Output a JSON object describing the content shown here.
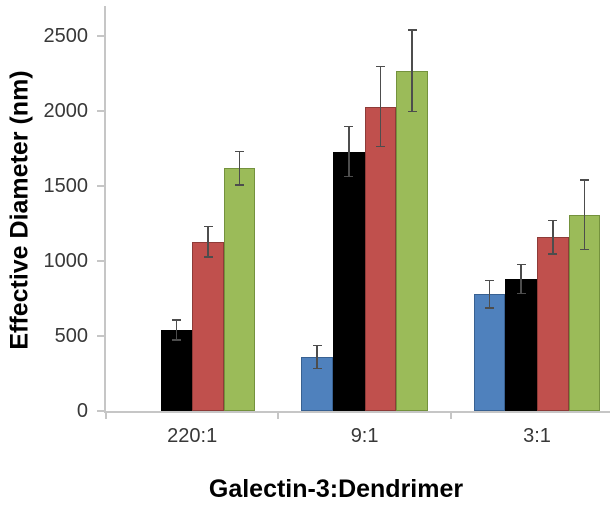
{
  "chart_data": {
    "type": "bar",
    "title": "",
    "xlabel": "Galectin-3:Dendrimer",
    "ylabel": "Effective Diameter (nm)",
    "categories": [
      "220:1",
      "9:1",
      "3:1"
    ],
    "series": [
      {
        "name": "blue",
        "color": "#4F81BD",
        "border_color": "#386192",
        "values": [
          null,
          360,
          780
        ],
        "errors": [
          null,
          75,
          90
        ]
      },
      {
        "name": "black",
        "color": "#000000",
        "border_color": "#000000",
        "values": [
          540,
          1730,
          880
        ],
        "errors": [
          65,
          165,
          95
        ]
      },
      {
        "name": "red",
        "color": "#C0504D",
        "border_color": "#8E3B38",
        "values": [
          1130,
          2030,
          1160
        ],
        "errors": [
          100,
          265,
          110
        ]
      },
      {
        "name": "green",
        "color": "#9BBB59",
        "border_color": "#74923D",
        "values": [
          1620,
          2270,
          1310
        ],
        "errors": [
          110,
          270,
          230
        ]
      }
    ],
    "yticks": [
      0,
      500,
      1000,
      1500,
      2000,
      2500
    ],
    "ylim": [
      0,
      2700
    ],
    "grid": false,
    "legend": "none",
    "error_bars": true,
    "axis_color": "#C6C6C6",
    "error_bar_color": "#4D4D4D"
  }
}
